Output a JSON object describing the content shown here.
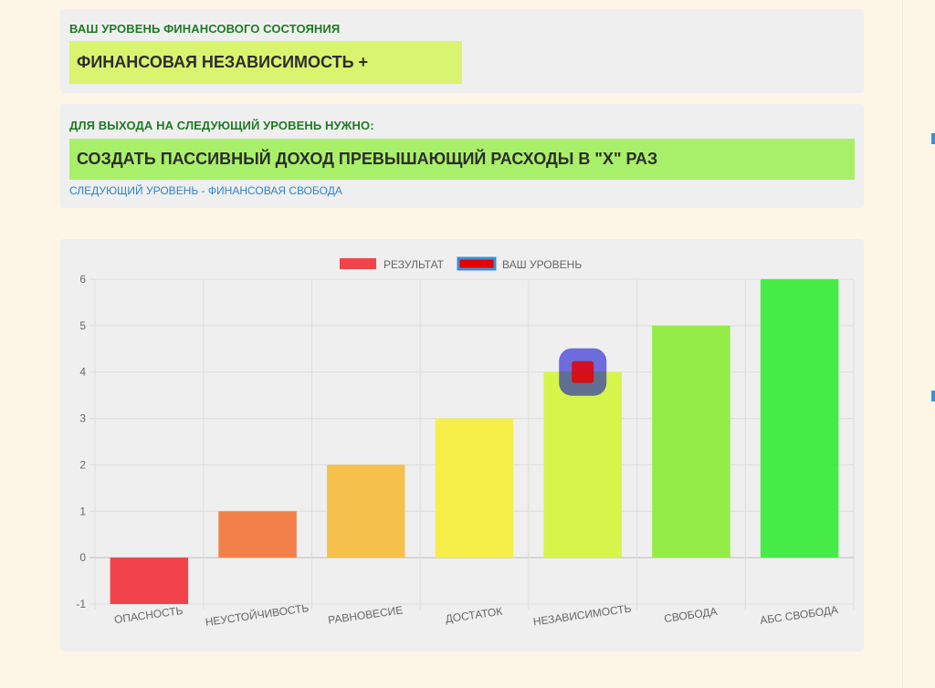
{
  "level": {
    "label": "ВАШ УРОВЕНЬ ФИНАНСОВОГО СОСТОЯНИЯ",
    "value": "ФИНАНСОВАЯ НЕЗАВИСИМОСТЬ +"
  },
  "next": {
    "label": "ДЛЯ ВЫХОДА НА СЛЕДУЮЩИЙ УРОВЕНЬ НУЖНО:",
    "value": "СОЗДАТЬ ПАССИВНЫЙ ДОХОД ПРЕВЫШАЮЩИЙ РАСХОДЫ  В \"Х\" РАЗ",
    "link": "СЛЕДУЮЩИЙ УРОВЕНЬ - ФИНАНСОВАЯ СВОБОДА"
  },
  "colors": {
    "label_green": "#1f7a24",
    "link_blue": "#2a86c9",
    "level_box": "#d9f46e",
    "next_box": "#a8f069"
  },
  "chart_data": {
    "type": "bar",
    "categories": [
      "ОПАСНОСТЬ",
      "НЕУСТОЙЧИВОСТЬ",
      "РАВНОВЕСИЕ",
      "ДОСТАТОК",
      "НЕЗАВИСИМОСТЬ",
      "СВОБОДА",
      "АБС СВОБОДА"
    ],
    "series": [
      {
        "name": "РЕЗУЛЬТАТ",
        "values": [
          -1,
          1,
          2,
          3,
          4,
          5,
          6
        ],
        "colors": [
          "#f2434a",
          "#f1804a",
          "#f6c14a",
          "#f6ef4a",
          "#d6f54a",
          "#93ed47",
          "#45ec47"
        ],
        "legend_color": "#f2434a"
      },
      {
        "name": "ВАШ УРОВЕНЬ",
        "type": "point",
        "category": "НЕЗАВИСИМОСТЬ",
        "value": 4,
        "color": "#e60000",
        "border_color": "#0000cc"
      }
    ],
    "yticks": [
      -1,
      0,
      1,
      2,
      3,
      4,
      5,
      6
    ],
    "ylim": [
      -1,
      6
    ],
    "grid": true,
    "legend": "top"
  }
}
